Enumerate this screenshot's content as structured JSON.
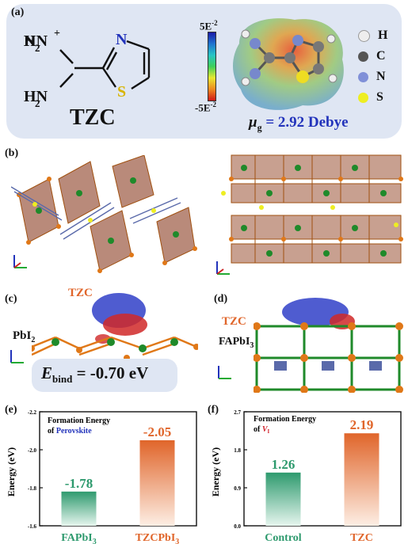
{
  "panels": {
    "a": {
      "label": "(a)",
      "molecule_name": "TZC",
      "atoms": {
        "nh2_top": "H",
        "nh2_top_n": "N",
        "nh2_bottom": "H",
        "nh2_bottom_n": "N",
        "ring_n": "N",
        "ring_s": "S",
        "plus": "+",
        "sub2": "2"
      },
      "esp_scale": {
        "max": "5E",
        "max_exp": "-2",
        "min": "-5E",
        "min_exp": "-2"
      },
      "legend": [
        "H",
        "C",
        "N",
        "S"
      ],
      "dipole": {
        "symbol": "μ",
        "sub": "g",
        "value": "= 2.92 Debye"
      }
    },
    "b": {
      "label": "(b)"
    },
    "c": {
      "label": "(c)",
      "mol": "TZC",
      "substrate": "PbI",
      "substrate_sub": "2",
      "energy": {
        "symbol": "E",
        "sub": "bind",
        "value": "= -0.70 eV"
      }
    },
    "d": {
      "label": "(d)",
      "mol": "TZC",
      "substrate": "FAPbI",
      "substrate_sub": "3"
    },
    "e": {
      "label": "(e)",
      "title_line1": "Formation Energy",
      "title_line2_prefix": "of ",
      "title_line2_highlight": "Perovskite"
    },
    "f": {
      "label": "(f)",
      "title_line1": "Formation Energy",
      "title_line2_prefix": "of ",
      "title_line2_highlight": "V",
      "title_line2_sub": "I"
    }
  },
  "colors": {
    "green": "#2e9a6e",
    "orange": "#e0652a",
    "blue": "#2233bb",
    "red": "#d0202a"
  },
  "chart_data": [
    {
      "type": "bar",
      "categories": [
        "FAPbI3",
        "TZCPbI3"
      ],
      "values": [
        -1.78,
        -2.05
      ],
      "value_labels": [
        "-1.78",
        "-2.05"
      ],
      "ylabel": "Energy (eV)",
      "ylim": [
        -1.6,
        -2.2
      ],
      "yticks": [
        "-1.6",
        "-1.8",
        "-2.0",
        "-2.2"
      ],
      "axis_inverted": true
    },
    {
      "type": "bar",
      "categories": [
        "Control",
        "TZC"
      ],
      "values": [
        1.26,
        2.19
      ],
      "value_labels": [
        "1.26",
        "2.19"
      ],
      "ylabel": "Energy (eV)",
      "ylim": [
        0.0,
        2.7
      ],
      "yticks": [
        "0.0",
        "0.9",
        "1.8",
        "2.7"
      ]
    }
  ]
}
